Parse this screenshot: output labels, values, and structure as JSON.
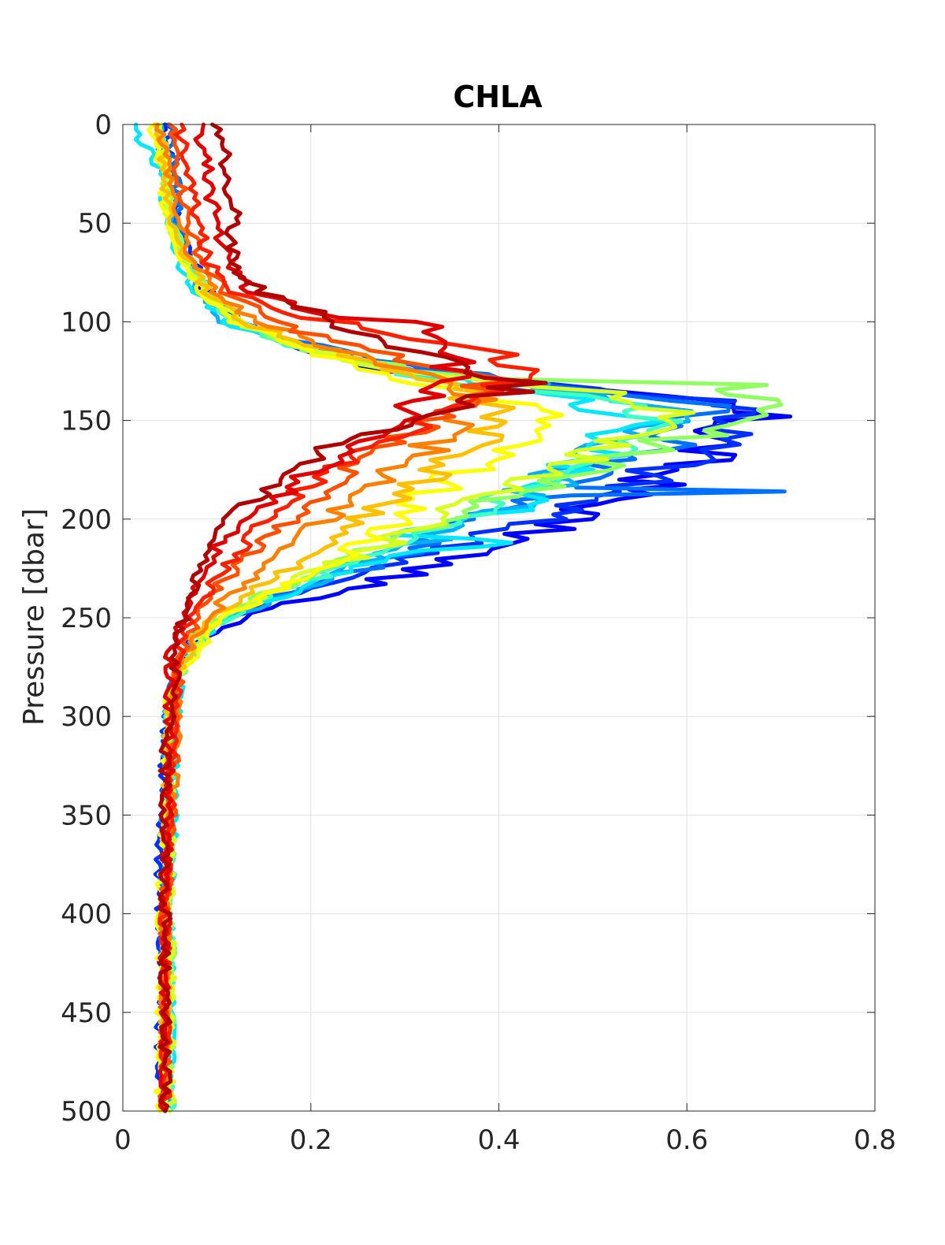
{
  "chart_data": {
    "type": "line",
    "title": "CHLA",
    "xlabel": "",
    "ylabel": "Pressure [dbar]",
    "xlim": [
      0,
      0.8
    ],
    "ylim": [
      0,
      500
    ],
    "y_reversed": true,
    "x_ticks": [
      0,
      0.2,
      0.4,
      0.6,
      0.8
    ],
    "x_tick_labels": [
      "0",
      "0.2",
      "0.4",
      "0.6",
      "0.8"
    ],
    "y_ticks": [
      0,
      50,
      100,
      150,
      200,
      250,
      300,
      350,
      400,
      450,
      500
    ],
    "y_tick_labels": [
      "0",
      "50",
      "100",
      "150",
      "200",
      "250",
      "300",
      "350",
      "400",
      "450",
      "500"
    ],
    "grid": true,
    "colormap": "jet",
    "series": [
      {
        "color": "#0000ff",
        "x": [
          0.04,
          0.045,
          0.055,
          0.07,
          0.09,
          0.12,
          0.18,
          0.29,
          0.49,
          0.63,
          0.66,
          0.62,
          0.57,
          0.5,
          0.42,
          0.3,
          0.16,
          0.07,
          0.05,
          0.045,
          0.045,
          0.045
        ],
        "y": [
          0,
          25,
          50,
          70,
          85,
          100,
          112,
          125,
          135,
          141,
          148,
          165,
          180,
          195,
          210,
          228,
          245,
          265,
          300,
          350,
          420,
          500
        ]
      },
      {
        "color": "#0030ff",
        "x": [
          0.05,
          0.05,
          0.06,
          0.075,
          0.09,
          0.12,
          0.19,
          0.3,
          0.5,
          0.65,
          0.665,
          0.6,
          0.52,
          0.44,
          0.3,
          0.16,
          0.07,
          0.05,
          0.04,
          0.04,
          0.04
        ],
        "y": [
          0,
          25,
          50,
          70,
          85,
          100,
          112,
          124,
          134,
          140,
          149,
          170,
          186,
          200,
          222,
          240,
          260,
          290,
          350,
          420,
          500
        ]
      },
      {
        "color": "#0070ff",
        "x": [
          0.05,
          0.055,
          0.06,
          0.07,
          0.09,
          0.12,
          0.2,
          0.32,
          0.5,
          0.6,
          0.62,
          0.58,
          0.52,
          0.46,
          0.75,
          0.46,
          0.38,
          0.28,
          0.15,
          0.07,
          0.05,
          0.045,
          0.045,
          0.045
        ],
        "y": [
          0,
          25,
          50,
          70,
          85,
          100,
          112,
          124,
          134,
          140,
          148,
          160,
          172,
          184,
          186,
          188,
          200,
          222,
          240,
          260,
          290,
          350,
          420,
          500
        ]
      },
      {
        "color": "#00b0ff",
        "x": [
          0.04,
          0.045,
          0.055,
          0.065,
          0.08,
          0.11,
          0.18,
          0.3,
          0.47,
          0.55,
          0.57,
          0.52,
          0.46,
          0.4,
          0.3,
          0.17,
          0.08,
          0.05,
          0.045,
          0.045,
          0.045
        ],
        "y": [
          0,
          25,
          50,
          70,
          85,
          100,
          112,
          124,
          134,
          140,
          148,
          165,
          180,
          196,
          215,
          238,
          258,
          290,
          350,
          420,
          500
        ]
      },
      {
        "color": "#00e8ff",
        "x": [
          0.01,
          0.04,
          0.05,
          0.06,
          0.08,
          0.11,
          0.18,
          0.28,
          0.4,
          0.5,
          0.55,
          0.5,
          0.44,
          0.4,
          0.3,
          0.42,
          0.3,
          0.2,
          0.1,
          0.06,
          0.05,
          0.05
        ],
        "y": [
          0,
          25,
          50,
          70,
          85,
          100,
          112,
          124,
          134,
          142,
          150,
          170,
          185,
          198,
          208,
          212,
          216,
          232,
          252,
          280,
          380,
          500
        ]
      },
      {
        "color": "#40ffc0",
        "x": [
          0.04,
          0.045,
          0.05,
          0.07,
          0.09,
          0.12,
          0.18,
          0.27,
          0.38,
          0.5,
          0.58,
          0.55,
          0.48,
          0.4,
          0.3,
          0.18,
          0.09,
          0.05,
          0.05,
          0.05
        ],
        "y": [
          0,
          25,
          50,
          70,
          85,
          100,
          112,
          124,
          132,
          140,
          148,
          162,
          176,
          192,
          212,
          234,
          255,
          290,
          400,
          500
        ]
      },
      {
        "color": "#90ff60",
        "x": [
          0.04,
          0.045,
          0.05,
          0.07,
          0.09,
          0.12,
          0.18,
          0.28,
          0.4,
          0.65,
          0.7,
          0.62,
          0.52,
          0.42,
          0.32,
          0.2,
          0.09,
          0.05,
          0.05,
          0.05
        ],
        "y": [
          0,
          25,
          50,
          70,
          85,
          100,
          112,
          122,
          129,
          132,
          142,
          155,
          170,
          186,
          206,
          228,
          252,
          290,
          400,
          500
        ]
      },
      {
        "color": "#d8ff20",
        "x": [
          0.04,
          0.045,
          0.05,
          0.07,
          0.09,
          0.12,
          0.18,
          0.27,
          0.38,
          0.5,
          0.6,
          0.56,
          0.47,
          0.38,
          0.28,
          0.18,
          0.09,
          0.05,
          0.05,
          0.05
        ],
        "y": [
          0,
          25,
          50,
          70,
          85,
          100,
          112,
          122,
          130,
          136,
          146,
          158,
          172,
          190,
          212,
          232,
          255,
          290,
          400,
          500
        ]
      },
      {
        "color": "#ffff00",
        "x": [
          0.03,
          0.04,
          0.05,
          0.065,
          0.085,
          0.12,
          0.18,
          0.26,
          0.35,
          0.42,
          0.45,
          0.4,
          0.34,
          0.28,
          0.2,
          0.1,
          0.05,
          0.04,
          0.04
        ],
        "y": [
          0,
          25,
          50,
          70,
          85,
          100,
          112,
          124,
          134,
          142,
          150,
          165,
          182,
          205,
          228,
          252,
          290,
          400,
          500
        ]
      },
      {
        "color": "#ffc000",
        "x": [
          0.04,
          0.045,
          0.05,
          0.07,
          0.09,
          0.13,
          0.2,
          0.28,
          0.36,
          0.4,
          0.38,
          0.33,
          0.28,
          0.22,
          0.15,
          0.08,
          0.05,
          0.045,
          0.045
        ],
        "y": [
          0,
          25,
          50,
          70,
          85,
          100,
          112,
          124,
          134,
          146,
          160,
          175,
          192,
          212,
          232,
          255,
          290,
          400,
          500
        ]
      },
      {
        "color": "#ff8000",
        "x": [
          0.04,
          0.05,
          0.06,
          0.075,
          0.1,
          0.14,
          0.22,
          0.3,
          0.37,
          0.38,
          0.34,
          0.28,
          0.22,
          0.16,
          0.1,
          0.06,
          0.045,
          0.045
        ],
        "y": [
          0,
          25,
          50,
          70,
          85,
          100,
          112,
          124,
          134,
          142,
          160,
          178,
          198,
          220,
          245,
          275,
          400,
          500
        ]
      },
      {
        "color": "#ff5000",
        "x": [
          0.05,
          0.06,
          0.07,
          0.085,
          0.11,
          0.16,
          0.24,
          0.32,
          0.39,
          0.37,
          0.31,
          0.25,
          0.19,
          0.14,
          0.09,
          0.06,
          0.045,
          0.045
        ],
        "y": [
          0,
          25,
          50,
          70,
          85,
          100,
          112,
          122,
          130,
          140,
          156,
          174,
          194,
          216,
          240,
          270,
          400,
          500
        ]
      },
      {
        "color": "#ff2000",
        "x": [
          0.06,
          0.07,
          0.08,
          0.09,
          0.12,
          0.2,
          0.3,
          0.38,
          0.43,
          0.4,
          0.33,
          0.25,
          0.19,
          0.14,
          0.1,
          0.06,
          0.045,
          0.045
        ],
        "y": [
          0,
          25,
          50,
          70,
          85,
          98,
          106,
          114,
          122,
          132,
          148,
          166,
          186,
          206,
          230,
          262,
          400,
          500
        ]
      },
      {
        "color": "#e00000",
        "x": [
          0.08,
          0.09,
          0.1,
          0.11,
          0.14,
          0.22,
          0.33,
          0.36,
          0.32,
          0.26,
          0.2,
          0.15,
          0.1,
          0.07,
          0.05,
          0.045,
          0.045
        ],
        "y": [
          0,
          25,
          50,
          70,
          85,
          98,
          100,
          118,
          140,
          158,
          176,
          194,
          214,
          240,
          270,
          400,
          500
        ]
      },
      {
        "color": "#b00000",
        "x": [
          0.1,
          0.11,
          0.12,
          0.115,
          0.15,
          0.28,
          0.43,
          0.38,
          0.3,
          0.22,
          0.17,
          0.11,
          0.08,
          0.06,
          0.045,
          0.045
        ],
        "y": [
          0,
          25,
          50,
          70,
          85,
          110,
          131,
          140,
          150,
          164,
          180,
          200,
          226,
          258,
          320,
          500
        ]
      }
    ]
  }
}
